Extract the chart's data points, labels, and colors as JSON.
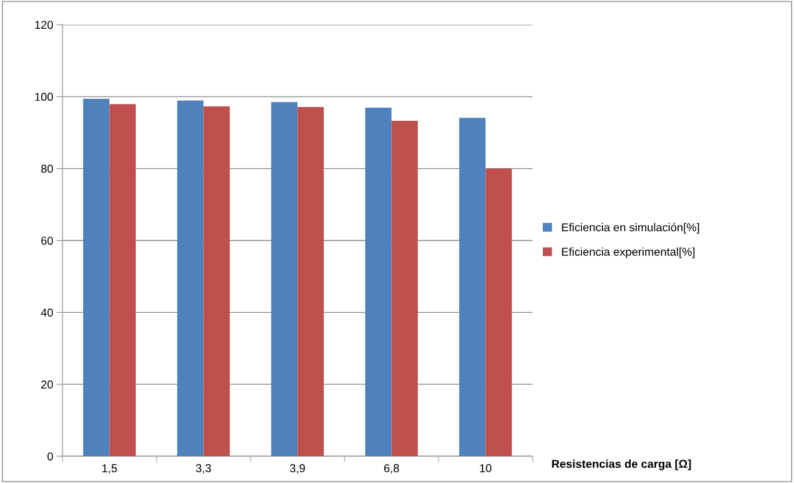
{
  "chart_data": {
    "type": "bar",
    "xlabel": "Resistencias de carga [Ω]",
    "categories": [
      "1,5",
      "3,3",
      "3,9",
      "6,8",
      "10"
    ],
    "series": [
      {
        "name": "Eficiencia en simulación[%]",
        "color": "#4f81bd",
        "values": [
          99.4,
          98.9,
          98.5,
          96.9,
          94.1
        ]
      },
      {
        "name": "Eficiencia experimental[%]",
        "color": "#c0504d",
        "values": [
          97.9,
          97.3,
          97.1,
          93.3,
          80.0
        ]
      }
    ],
    "ylim": [
      0,
      120
    ],
    "yticks": [
      0,
      20,
      40,
      60,
      80,
      100,
      120
    ],
    "grid": "y",
    "legend": "right"
  }
}
